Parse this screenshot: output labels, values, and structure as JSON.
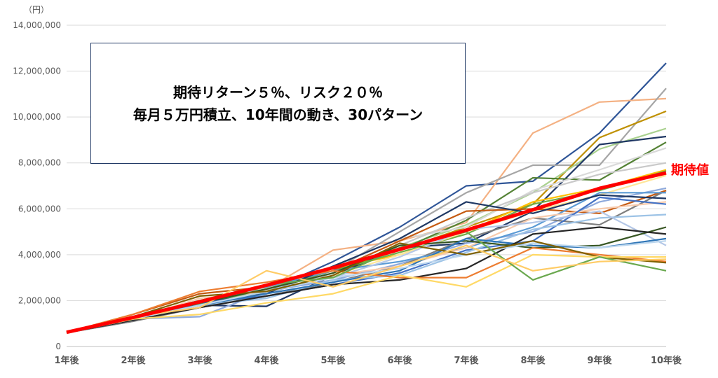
{
  "chart_data": {
    "type": "line",
    "title_lines": [
      "期待リターン５％、リスク２０％",
      "毎月５万円積立、10年間の動き、30パターン"
    ],
    "unit_label": "（円）",
    "categories": [
      "1年後",
      "2年後",
      "3年後",
      "4年後",
      "5年後",
      "6年後",
      "7年後",
      "8年後",
      "9年後",
      "10年後"
    ],
    "ylim": [
      0,
      14000000
    ],
    "y_ticks": [
      {
        "value": 0,
        "label": "0"
      },
      {
        "value": 2000000,
        "label": "2,000,000"
      },
      {
        "value": 4000000,
        "label": "4,000,000"
      },
      {
        "value": 6000000,
        "label": "6,000,000"
      },
      {
        "value": 8000000,
        "label": "8,000,000"
      },
      {
        "value": 10000000,
        "label": "10,000,000"
      },
      {
        "value": 12000000,
        "label": "12,000,000"
      },
      {
        "value": 14000000,
        "label": "14,000,000"
      }
    ],
    "grid": true,
    "expected": {
      "label": "期待値",
      "color": "#ff0000",
      "values": [
        620000,
        1270000,
        1950000,
        2670000,
        3430000,
        4230000,
        5070000,
        5960000,
        6890000,
        7560000
      ]
    },
    "series": [
      {
        "color": "#2f5597",
        "values": [
          600000,
          1250000,
          1800000,
          2400000,
          3700000,
          5200000,
          7000000,
          7200000,
          9300000,
          12350000
        ]
      },
      {
        "color": "#f4b183",
        "values": [
          650000,
          1300000,
          1900000,
          2500000,
          4200000,
          4600000,
          5400000,
          9300000,
          10650000,
          10800000
        ]
      },
      {
        "color": "#a6a6a6",
        "values": [
          600000,
          1100000,
          1900000,
          2500000,
          3300000,
          5000000,
          6700000,
          7900000,
          7900000,
          11250000
        ]
      },
      {
        "color": "#bf9000",
        "values": [
          630000,
          1300000,
          2000000,
          2600000,
          3300000,
          4200000,
          5200000,
          6200000,
          9100000,
          10250000
        ]
      },
      {
        "color": "#a9d18e",
        "values": [
          620000,
          1200000,
          1900000,
          2400000,
          3400000,
          4300000,
          5300000,
          6700000,
          8600000,
          9500000
        ]
      },
      {
        "color": "#203864",
        "values": [
          600000,
          1150000,
          1800000,
          1750000,
          3100000,
          4300000,
          4500000,
          5900000,
          8800000,
          9150000
        ]
      },
      {
        "color": "#548235",
        "values": [
          640000,
          1300000,
          2000000,
          2700000,
          3400000,
          4200000,
          5500000,
          7350000,
          7250000,
          8900000
        ]
      },
      {
        "color": "#d9d9d9",
        "values": [
          610000,
          1200000,
          1900000,
          2500000,
          3500000,
          4700000,
          5200000,
          6800000,
          7700000,
          8650000
        ]
      },
      {
        "color": "#c9c9c9",
        "values": [
          600000,
          1100000,
          1700000,
          2300000,
          3200000,
          4400000,
          5600000,
          6700000,
          7500000,
          8000000
        ]
      },
      {
        "color": "#ffc000",
        "values": [
          620000,
          1250000,
          1900000,
          2600000,
          3400000,
          4000000,
          5000000,
          6300000,
          6900000,
          7700000
        ]
      },
      {
        "color": "#70ad47",
        "values": [
          610000,
          1200000,
          1850000,
          2500000,
          3300000,
          4100000,
          4900000,
          6200000,
          6800000,
          7650000
        ]
      },
      {
        "color": "#ffe699",
        "values": [
          600000,
          1150000,
          1800000,
          2400000,
          3100000,
          4000000,
          5000000,
          5900000,
          6600000,
          7450000
        ]
      },
      {
        "color": "#8faadc",
        "values": [
          630000,
          1200000,
          1300000,
          2400000,
          2900000,
          3600000,
          4500000,
          5000000,
          6300000,
          6900000
        ]
      },
      {
        "color": "#7f7f7f",
        "values": [
          600000,
          1100000,
          1700000,
          2200000,
          2800000,
          3500000,
          4700000,
          5600000,
          5300000,
          6800000
        ]
      },
      {
        "color": "#c55a11",
        "values": [
          620000,
          1400000,
          2300000,
          2600000,
          3300000,
          4600000,
          5900000,
          6000000,
          5800000,
          6800000
        ]
      },
      {
        "color": "#5b9bd5",
        "values": [
          610000,
          1300000,
          2000000,
          2600000,
          3300000,
          3700000,
          4300000,
          5200000,
          6700000,
          6700000
        ]
      },
      {
        "color": "#1f3864",
        "values": [
          600000,
          1250000,
          1900000,
          2300000,
          3500000,
          4700000,
          6300000,
          5800000,
          6600000,
          6450000
        ]
      },
      {
        "color": "#f8cbad",
        "values": [
          620000,
          1200000,
          2100000,
          2400000,
          3100000,
          3500000,
          4300000,
          5600000,
          6000000,
          6300000
        ]
      },
      {
        "color": "#4472c4",
        "values": [
          610000,
          1150000,
          1900000,
          2200000,
          2700000,
          3200000,
          4200000,
          4600000,
          6500000,
          6200000
        ]
      },
      {
        "color": "#9dc3e6",
        "values": [
          600000,
          1200000,
          1800000,
          2100000,
          2900000,
          3100000,
          4100000,
          5100000,
          5600000,
          5750000
        ]
      },
      {
        "color": "#b4c7e7",
        "values": [
          620000,
          1250000,
          2000000,
          2500000,
          3000000,
          3900000,
          5100000,
          5400000,
          5900000,
          4400000
        ]
      },
      {
        "color": "#375623",
        "values": [
          600000,
          1200000,
          1900000,
          2500000,
          3200000,
          4400000,
          4600000,
          4300000,
          4400000,
          5200000
        ]
      },
      {
        "color": "#2e75b6",
        "values": [
          610000,
          1300000,
          1800000,
          2300000,
          2800000,
          3300000,
          4700000,
          4400000,
          4300000,
          4700000
        ]
      },
      {
        "color": "#262626",
        "values": [
          600000,
          1150000,
          1700000,
          2200000,
          2700000,
          2900000,
          3400000,
          4900000,
          5200000,
          4900000
        ]
      },
      {
        "color": "#ed7d31",
        "values": [
          620000,
          1400000,
          2400000,
          2800000,
          3300000,
          3000000,
          3000000,
          4300000,
          4000000,
          3700000
        ]
      },
      {
        "color": "#bdd7ee",
        "values": [
          600000,
          1200000,
          1800000,
          2400000,
          3000000,
          3400000,
          4000000,
          4500000,
          4300000,
          4600000
        ]
      },
      {
        "color": "#806000",
        "values": [
          630000,
          1300000,
          2200000,
          2400000,
          3100000,
          4500000,
          4000000,
          4600000,
          3900000,
          3650000
        ]
      },
      {
        "color": "#ffd966",
        "values": [
          610000,
          1200000,
          1400000,
          1900000,
          2300000,
          3100000,
          2600000,
          4000000,
          3900000,
          3900000
        ]
      },
      {
        "color": "#6aa84f",
        "values": [
          600000,
          1250000,
          2000000,
          2700000,
          3000000,
          4300000,
          5000000,
          2900000,
          3900000,
          3300000
        ]
      },
      {
        "color": "#ffcc66",
        "values": [
          620000,
          1300000,
          1700000,
          3300000,
          2600000,
          3500000,
          4400000,
          3300000,
          3700000,
          3800000
        ]
      }
    ]
  }
}
